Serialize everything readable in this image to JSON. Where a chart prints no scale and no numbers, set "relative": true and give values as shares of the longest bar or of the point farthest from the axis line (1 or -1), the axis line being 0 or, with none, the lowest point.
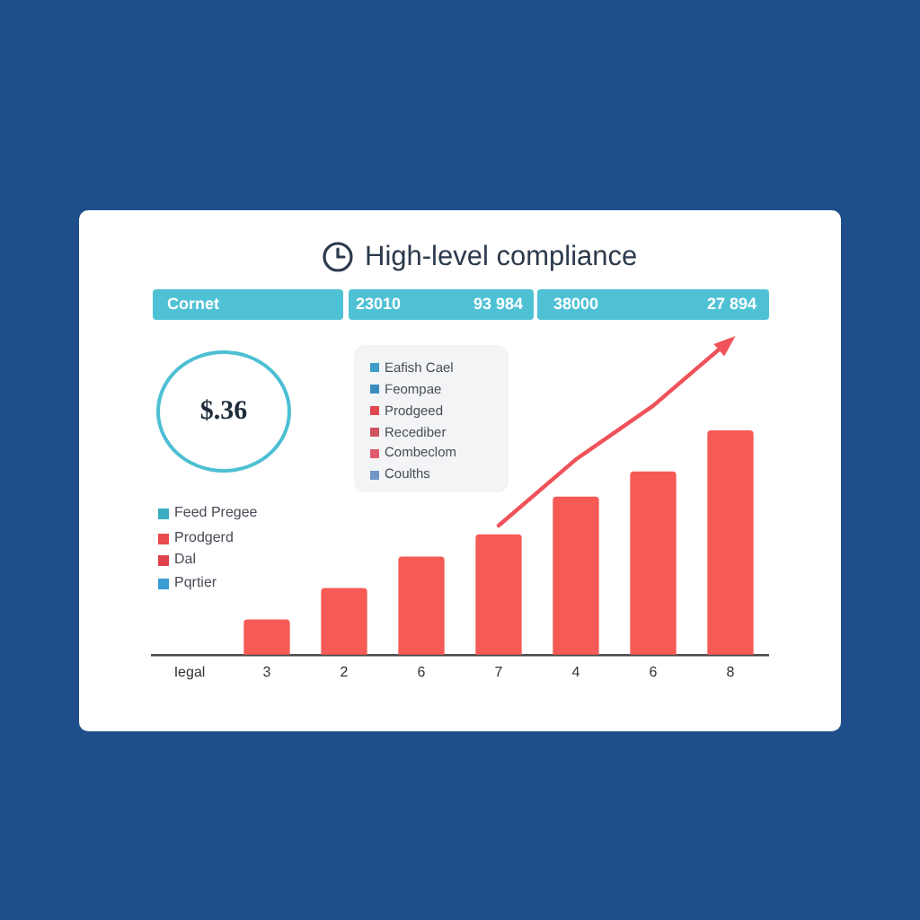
{
  "chart_data": {
    "type": "bar",
    "title": "High-level compliance",
    "categories": [
      "Iegal",
      "3",
      "2",
      "6",
      "7",
      "4",
      "6",
      "8"
    ],
    "relative": true,
    "series": [
      {
        "color": "#f65a55",
        "values": [
          null,
          0.11,
          0.21,
          0.31,
          0.38,
          0.5,
          0.58,
          0.71
        ]
      },
      {
        "type": "line",
        "color": "#f0525a",
        "values": [
          null,
          null,
          null,
          null,
          0.41,
          0.62,
          0.79,
          1.0
        ]
      }
    ],
    "marker": "none",
    "grid": false,
    "legend": false,
    "annotations": [
      "Cornet",
      "23010",
      "93 984",
      "38000",
      "27 894",
      "$.36",
      "Eafish Cael",
      "Feompae",
      "Prodgeed",
      "Recediber",
      "Combeclom",
      "Coulths",
      "Feed Pregee",
      "Prodgerd",
      "Dal",
      "Pqrtier"
    ]
  }
}
